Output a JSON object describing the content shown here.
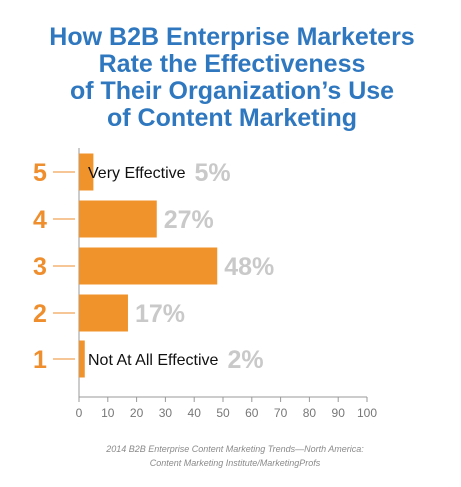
{
  "chart_data": {
    "type": "bar",
    "orientation": "horizontal",
    "title_lines": [
      "How B2B Enterprise Marketers",
      "Rate the Effectiveness",
      "of Their Organization’s Use",
      "of Content Marketing"
    ],
    "categories": [
      "5",
      "4",
      "3",
      "2",
      "1"
    ],
    "category_annotations": [
      "Very Effective",
      "",
      "",
      "",
      "Not At All Effective"
    ],
    "values": [
      5,
      27,
      48,
      17,
      2
    ],
    "value_labels": [
      "5%",
      "27%",
      "48%",
      "17%",
      "2%"
    ],
    "xlim": [
      0,
      100
    ],
    "xticks": [
      "0",
      "10",
      "20",
      "30",
      "40",
      "50",
      "60",
      "70",
      "80",
      "90",
      "100"
    ],
    "grid": false,
    "source_lines": [
      "2014 B2B Enterprise Content Marketing Trends—North America:",
      "Content Marketing Institute/MarketingProfs"
    ],
    "colors": {
      "title": "#2f78bf",
      "bar": "#f0932b",
      "rating": "#ef8e2d",
      "value_label": "#c9c9c9",
      "axis": "#999999"
    }
  }
}
